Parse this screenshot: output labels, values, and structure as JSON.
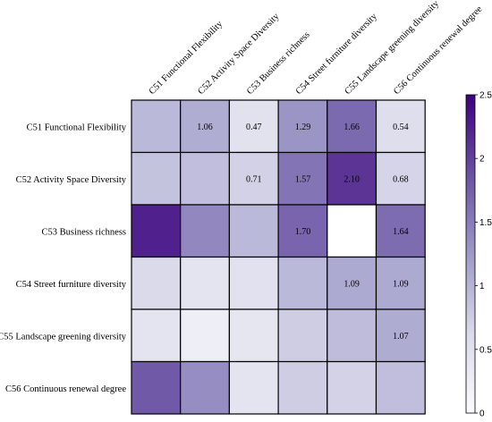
{
  "chart_data": {
    "type": "heatmap",
    "labels": [
      "C51 Functional Flexibility",
      "C52 Activity Space Diversity",
      "C53 Business richness",
      "C54 Street furniture diversity",
      "C55 Landscape greening diversity",
      "C56 Continuous renewal degree"
    ],
    "matrix": [
      [
        0.95,
        1.06,
        0.47,
        1.29,
        1.66,
        0.54
      ],
      [
        0.85,
        0.9,
        0.71,
        1.57,
        2.1,
        0.68
      ],
      [
        2.25,
        1.4,
        0.95,
        1.7,
        null,
        1.64
      ],
      [
        0.62,
        0.45,
        0.5,
        0.95,
        1.09,
        1.09
      ],
      [
        0.45,
        0.25,
        0.4,
        0.75,
        0.92,
        1.07
      ],
      [
        1.8,
        1.35,
        0.45,
        0.75,
        0.7,
        0.9
      ]
    ],
    "value_labels": [
      [
        "",
        "1.06",
        "0.47",
        "1.29",
        "1.66",
        "0.54"
      ],
      [
        "",
        "",
        "0.71",
        "1.57",
        "2.10",
        "0.68"
      ],
      [
        "",
        "",
        "",
        "1.70",
        "",
        "1.64"
      ],
      [
        "",
        "",
        "",
        "",
        "1.09",
        "1.09"
      ],
      [
        "",
        "",
        "",
        "",
        "",
        "1.07"
      ],
      [
        "",
        "",
        "",
        "",
        "",
        ""
      ]
    ],
    "colorbar": {
      "min": 0,
      "max": 2.5,
      "ticks": [
        "0",
        "0.5",
        "1",
        "1.5",
        "2",
        "2.5"
      ],
      "color_low": "#fcfbfd",
      "color_high": "#3f007d"
    }
  }
}
